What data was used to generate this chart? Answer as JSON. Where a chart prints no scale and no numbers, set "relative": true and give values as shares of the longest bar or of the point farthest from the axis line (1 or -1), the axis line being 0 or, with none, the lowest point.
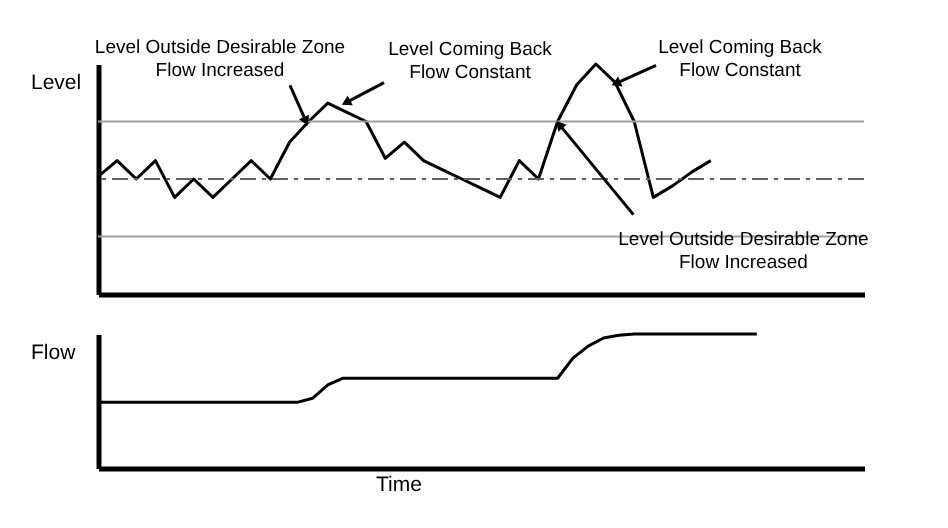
{
  "chart_data": [
    {
      "type": "line",
      "ylabel": "Level",
      "relative": true,
      "tick_labels": false,
      "grid": false,
      "marker": "none",
      "line_style": "solid",
      "categories": [
        null,
        null,
        null,
        null,
        null,
        null,
        null,
        null,
        null,
        null,
        null,
        null,
        null,
        null,
        null,
        null,
        null,
        null,
        null,
        null,
        null,
        null,
        null,
        null,
        null,
        null,
        null,
        null,
        null,
        null,
        null,
        null,
        null,
        null,
        null,
        null,
        null,
        null,
        null,
        null,
        null
      ],
      "series": [
        {
          "color": "#000000",
          "values": [
            0.51,
            0.58,
            0.5,
            0.58,
            0.42,
            0.5,
            0.42,
            0.5,
            0.58,
            0.5,
            0.66,
            0.75,
            0.83,
            0.79,
            0.75,
            0.59,
            0.66,
            0.58,
            0.54,
            0.5,
            0.46,
            0.42,
            0.58,
            0.5,
            0.75,
            0.91,
            1,
            0.92,
            0.75,
            0.42,
            0.47,
            0.53,
            0.58,
            null,
            null,
            null,
            null,
            null,
            null,
            null,
            null
          ]
        }
      ],
      "ref_lines": [
        {
          "axis": "y",
          "value": 0.75,
          "color": "#a0a0a0",
          "line_style": "solid"
        },
        {
          "axis": "y",
          "value": 0.5,
          "color": "#606060",
          "line_style": "dashed"
        },
        {
          "axis": "y",
          "value": 0.25,
          "color": "#a0a0a0",
          "line_style": "solid"
        }
      ],
      "annotations": [
        "Level Outside Desirable Zone\nFlow Increased",
        "Level Coming Back\nFlow Constant",
        "Level Coming Back\nFlow Constant",
        "Level Outside Desirable Zone\nFlow Increased"
      ]
    },
    {
      "type": "line",
      "ylabel": "Flow",
      "xlabel": "Time",
      "relative": true,
      "tick_labels": false,
      "grid": false,
      "marker": "none",
      "line_style": "solid",
      "categories": [
        null,
        null,
        null,
        null,
        null,
        null,
        null,
        null,
        null,
        null,
        null,
        null,
        null,
        null,
        null,
        null,
        null,
        null,
        null,
        null,
        null,
        null,
        null,
        null,
        null,
        null,
        null,
        null,
        null,
        null,
        null,
        null,
        null,
        null,
        null,
        null,
        null,
        null,
        null,
        null,
        null,
        null,
        null,
        null,
        null,
        null,
        null,
        null,
        null,
        null,
        null
      ],
      "series": [
        {
          "color": "#000000",
          "values": [
            0.49,
            0.49,
            0.49,
            0.49,
            0.49,
            0.49,
            0.49,
            0.49,
            0.49,
            0.49,
            0.49,
            0.49,
            0.49,
            0.49,
            0.52,
            0.62,
            0.67,
            0.67,
            0.67,
            0.67,
            0.67,
            0.67,
            0.67,
            0.67,
            0.67,
            0.67,
            0.67,
            0.67,
            0.67,
            0.67,
            0.67,
            0.82,
            0.91,
            0.97,
            0.99,
            1,
            1,
            1,
            1,
            1,
            1,
            1,
            1,
            1,
            null,
            null,
            null,
            null,
            null,
            null,
            null
          ]
        }
      ]
    }
  ]
}
